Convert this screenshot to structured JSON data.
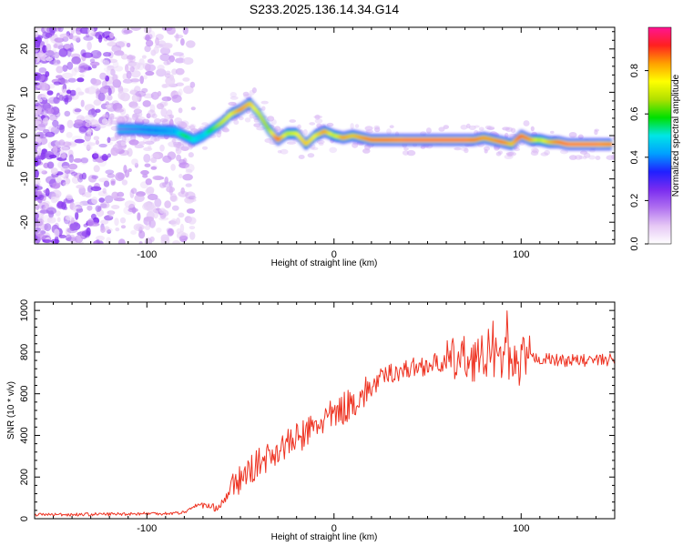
{
  "figure": {
    "title": "S233.2025.136.14.34.G14"
  },
  "chart_data": [
    {
      "type": "heatmap",
      "title": "S233.2025.136.14.34.G14",
      "xlabel": "Height of straight line (km)",
      "ylabel": "Frequency (Hz)",
      "xlim": [
        -160,
        150
      ],
      "ylim": [
        -25,
        25
      ],
      "x_ticks": [
        -100,
        0,
        100
      ],
      "y_ticks": [
        -20,
        -10,
        0,
        10,
        20
      ],
      "colorbar": {
        "label": "Normalized spectral amplitude",
        "range": [
          0,
          1
        ],
        "ticks": [
          0.0,
          0.2,
          0.4,
          0.6,
          0.8
        ],
        "colormap": [
          "#ffffff",
          "#e6c8f5",
          "#b070f0",
          "#7a2cf0",
          "#2020ff",
          "#00a0ff",
          "#00e6e6",
          "#00e000",
          "#b0e000",
          "#ffff00",
          "#ffa000",
          "#ff2020",
          "#ff1493"
        ]
      },
      "ridge": {
        "x": [
          -115,
          -105,
          -95,
          -85,
          -80,
          -75,
          -70,
          -65,
          -60,
          -55,
          -50,
          -45,
          -40,
          -35,
          -30,
          -25,
          -20,
          -15,
          -10,
          -5,
          0,
          5,
          10,
          15,
          20,
          30,
          40,
          50,
          60,
          70,
          75,
          80,
          85,
          90,
          95,
          100,
          105,
          110,
          115,
          120,
          125,
          130,
          135,
          140,
          148
        ],
        "freq": [
          1.5,
          1.5,
          1.2,
          1,
          0,
          -1,
          0,
          1.5,
          3,
          5,
          6,
          7.5,
          5,
          1.5,
          -1,
          0.5,
          0.5,
          -2,
          0,
          1,
          0,
          -0.5,
          0,
          -0.5,
          -1,
          -1,
          -1,
          -1,
          -1,
          -1,
          -1,
          -0.5,
          -1,
          -1.5,
          -2,
          0,
          -1,
          -1,
          -1.5,
          -1.5,
          -2,
          -2,
          -2,
          -2,
          -2
        ],
        "amplitude": [
          0.25,
          0.3,
          0.35,
          0.4,
          0.6,
          0.5,
          0.45,
          0.6,
          0.7,
          0.75,
          0.85,
          0.8,
          0.7,
          0.65,
          0.9,
          0.7,
          0.75,
          0.8,
          0.75,
          0.85,
          0.7,
          0.85,
          0.8,
          0.85,
          0.9,
          0.92,
          0.95,
          0.95,
          0.95,
          0.95,
          0.9,
          0.85,
          0.85,
          0.9,
          0.8,
          0.9,
          0.85,
          0.7,
          0.8,
          0.9,
          0.95,
          0.95,
          0.95,
          0.95,
          0.9
        ]
      }
    },
    {
      "type": "line",
      "xlabel": "Height of straight line (km)",
      "ylabel": "SNR (10 * v/v)",
      "xlim": [
        -160,
        150
      ],
      "ylim": [
        0,
        1040
      ],
      "x_ticks": [
        -100,
        0,
        100
      ],
      "y_ticks": [
        0,
        200,
        400,
        600,
        800,
        1000
      ],
      "color": "#ee3322",
      "series": [
        {
          "x": [
            -160,
            -140,
            -120,
            -100,
            -90,
            -80,
            -75,
            -70,
            -65,
            -60,
            -55,
            -50,
            -45,
            -40,
            -35,
            -30,
            -25,
            -20,
            -15,
            -10,
            -5,
            0,
            5,
            10,
            15,
            20,
            25,
            30,
            40,
            50,
            60,
            65,
            70,
            80,
            85,
            90,
            95,
            100,
            105,
            110,
            120,
            130,
            140,
            150
          ],
          "values": [
            20,
            20,
            22,
            25,
            25,
            30,
            60,
            70,
            50,
            70,
            140,
            190,
            230,
            270,
            300,
            330,
            360,
            380,
            410,
            440,
            480,
            490,
            530,
            560,
            590,
            630,
            670,
            700,
            720,
            740,
            750,
            760,
            770,
            770,
            775,
            770,
            780,
            775,
            770,
            770,
            760,
            760,
            760,
            765
          ]
        }
      ]
    }
  ]
}
